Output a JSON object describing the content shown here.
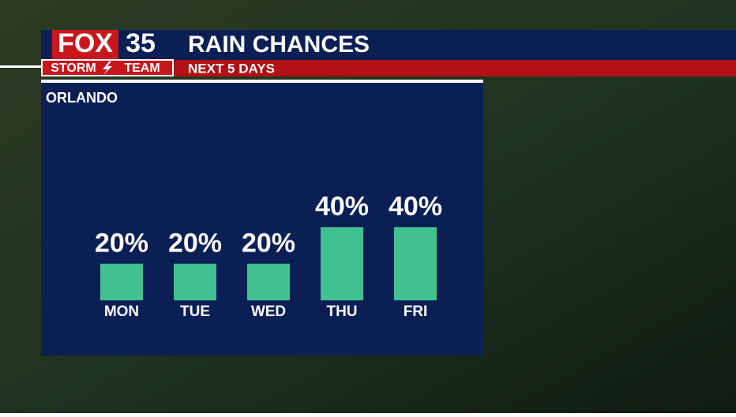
{
  "brand": {
    "network": "FOX",
    "channel": "35",
    "team_left": "STORM",
    "team_right": "TEAM"
  },
  "chart_data": {
    "type": "bar",
    "title": "RAIN CHANCES",
    "subtitle": "NEXT 5 DAYS",
    "location": "ORLANDO",
    "categories": [
      "MON",
      "TUE",
      "WED",
      "THU",
      "FRI"
    ],
    "values": [
      20,
      20,
      20,
      40,
      40
    ],
    "value_labels": [
      "20%",
      "20%",
      "20%",
      "40%",
      "40%"
    ],
    "color": "#41c191"
  }
}
